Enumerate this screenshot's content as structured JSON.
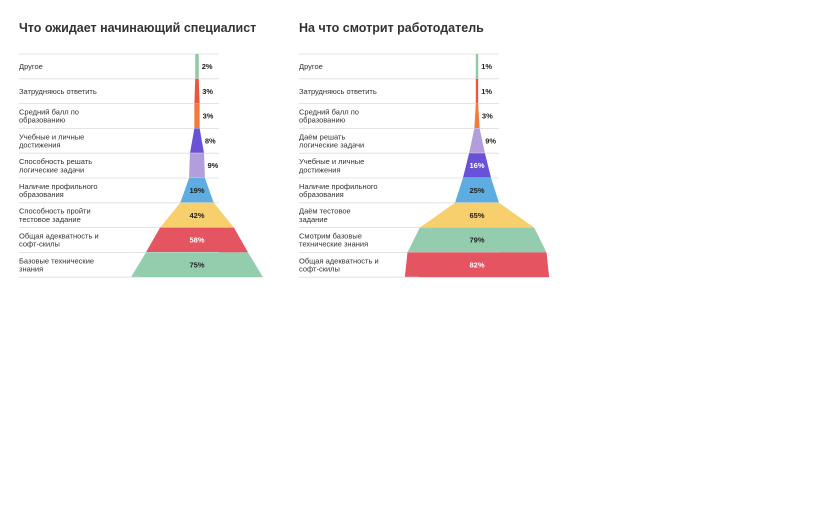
{
  "chart_data": [
    {
      "type": "funnel",
      "title": "Что ожидает начинающий специалист",
      "categories": [
        "Другое",
        "Затрудняюсь ответить",
        "Средний балл по образованию",
        "Учебные и личные достижения",
        "Способность решать логические задачи",
        "Наличие профильного образования",
        "Способность пройти тестовое задание",
        "Общая адекватность и софт-скилы",
        "Базовые технические знания"
      ],
      "values": [
        2,
        3,
        3,
        8,
        9,
        19,
        42,
        58,
        75
      ],
      "value_labels": [
        "2%",
        "3%",
        "3%",
        "8%",
        "9%",
        "19%",
        "42%",
        "58%",
        "75%"
      ],
      "colors": [
        "#8fcaa5",
        "#e9573f",
        "#f07b3f",
        "#6a52d8",
        "#b39ddb",
        "#5dade2",
        "#f7cf6d",
        "#e55461",
        "#94cdae"
      ]
    },
    {
      "type": "funnel",
      "title": "На что смотрит работодатель",
      "categories": [
        "Другое",
        "Затрудняюсь ответить",
        "Средний балл по образованию",
        "Даём решать логические задачи",
        "Учебные и личные достижения",
        "Наличие профильного образования",
        "Даём тестовое задание",
        "Смотрим базовые технические знания",
        "Общая адекватность и софт-скилы"
      ],
      "values": [
        1,
        1,
        3,
        9,
        16,
        25,
        65,
        79,
        82
      ],
      "value_labels": [
        "1%",
        "1%",
        "3%",
        "9%",
        "16%",
        "25%",
        "65%",
        "79%",
        "82%"
      ],
      "colors": [
        "#8fcaa5",
        "#e9573f",
        "#f07b3f",
        "#b39ddb",
        "#6a52d8",
        "#5dade2",
        "#f7cf6d",
        "#94cdae",
        "#e55461"
      ]
    }
  ]
}
